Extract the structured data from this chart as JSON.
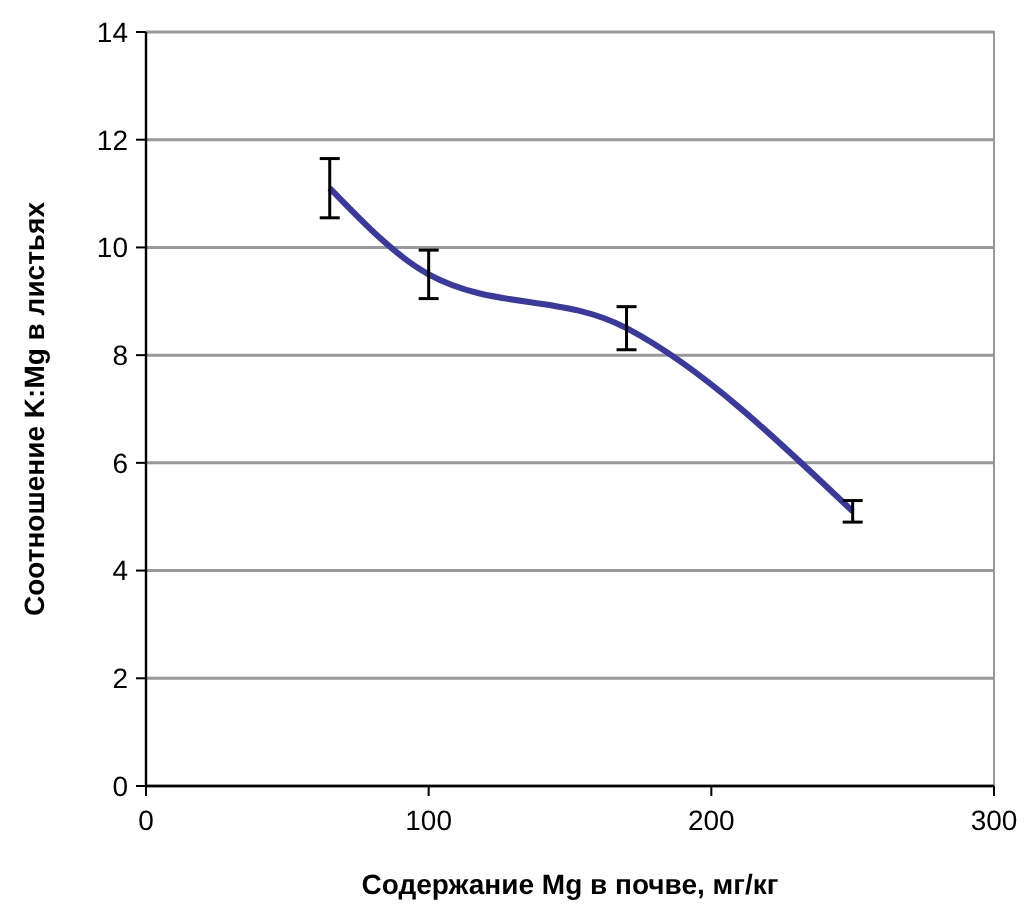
{
  "chart_data": {
    "type": "line",
    "xlabel": "Содержание Mg в почве, мг/кг",
    "ylabel": "Соотношение K:Mg в листьях",
    "x": [
      65,
      100,
      170,
      250
    ],
    "series": [
      {
        "color": "#3a3a9e",
        "values": [
          11.1,
          9.5,
          8.5,
          5.1
        ],
        "errors": [
          0.55,
          0.45,
          0.4,
          0.2
        ]
      }
    ],
    "xlim": [
      0,
      300
    ],
    "xticks": [
      0,
      100,
      200,
      300
    ],
    "ylim": [
      0,
      14
    ],
    "yticks": [
      0,
      2,
      4,
      6,
      8,
      10,
      12,
      14
    ],
    "grid": "y",
    "marker": "none",
    "line_style": "solid"
  }
}
